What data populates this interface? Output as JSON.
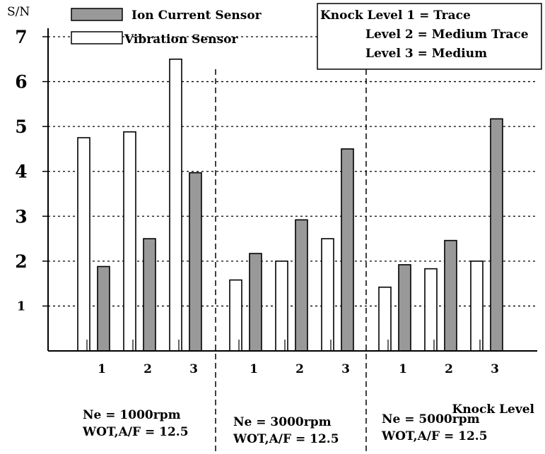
{
  "chart_data": {
    "type": "bar",
    "ylabel": "S/N",
    "xlabel": "Knock Level",
    "ylim": [
      0,
      7
    ],
    "yticks": [
      "1",
      "2",
      "3",
      "4",
      "5",
      "6",
      "7"
    ],
    "grid": "horizontal dotted",
    "legend_position": "top-left",
    "series": [
      {
        "name": "Vibration Sensor",
        "color": "#ffffff"
      },
      {
        "name": "Ion Current Sensor",
        "color": "#999999"
      }
    ],
    "groups": [
      {
        "condition_line1": "Ne = 1000rpm",
        "condition_line2": "WOT,A/F = 12.5",
        "categories": [
          "1",
          "2",
          "3"
        ],
        "vibration": [
          4.75,
          4.88,
          6.5
        ],
        "ion": [
          1.88,
          2.5,
          3.97
        ]
      },
      {
        "condition_line1": "Ne = 3000rpm",
        "condition_line2": "WOT,A/F = 12.5",
        "categories": [
          "1",
          "2",
          "3"
        ],
        "vibration": [
          1.58,
          2.0,
          2.5
        ],
        "ion": [
          2.17,
          2.92,
          4.5
        ]
      },
      {
        "condition_line1": "Ne = 5000rpm",
        "condition_line2": "WOT,A/F = 12.5",
        "categories": [
          "1",
          "2",
          "3"
        ],
        "vibration": [
          1.42,
          1.83,
          2.0
        ],
        "ion": [
          1.92,
          2.46,
          5.17
        ]
      }
    ],
    "annotation": {
      "lines": [
        "Knock Level 1 = Trace",
        "Level 2 = Medium Trace",
        "Level 3 = Medium"
      ]
    }
  }
}
